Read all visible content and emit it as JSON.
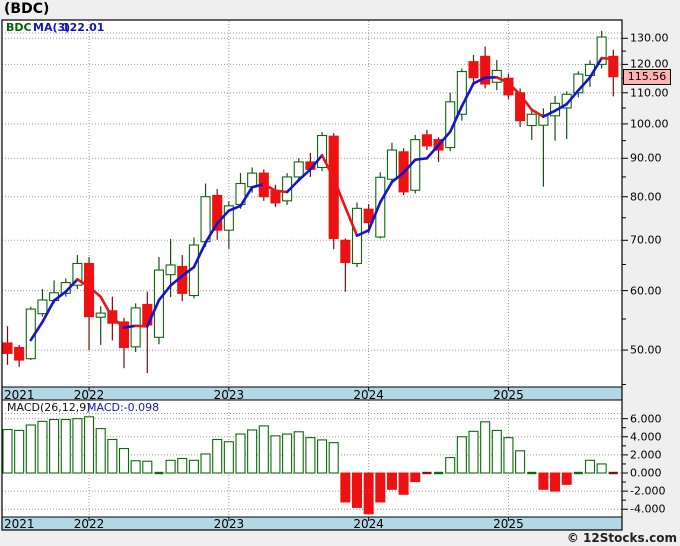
{
  "window": {
    "title": "(BDC)"
  },
  "price_pane": {
    "legend": {
      "symbol": "BDC",
      "ma_label": "MA(3)",
      "ma_value": "122.01"
    },
    "current_price_label": "115.56",
    "axis_labels": [
      {
        "label": "130.00",
        "value": 130
      },
      {
        "label": "120.00",
        "value": 120
      },
      {
        "label": "110.00",
        "value": 110
      },
      {
        "label": "100.00",
        "value": 100
      },
      {
        "label": "90.00",
        "value": 90
      },
      {
        "label": "80.00",
        "value": 80
      },
      {
        "label": "70.00",
        "value": 70
      },
      {
        "label": "60.00",
        "value": 60
      },
      {
        "label": "50.00",
        "value": 50
      }
    ],
    "minor_ticks": [
      125,
      115,
      105,
      95,
      85,
      75,
      65,
      55,
      45
    ]
  },
  "macd_pane": {
    "legend_label": "MACD(26,12,9)",
    "legend_value": "MACD:-0.098",
    "axis_labels": [
      {
        "label": "6.000",
        "value": 6
      },
      {
        "label": "4.000",
        "value": 4
      },
      {
        "label": "2.000",
        "value": 2
      },
      {
        "label": "0.000",
        "value": 0
      },
      {
        "label": "-2.000",
        "value": -2
      },
      {
        "label": "-4.000",
        "value": -4
      }
    ],
    "minor_ticks": [
      5,
      3,
      1,
      -1,
      -3
    ]
  },
  "x_axis": {
    "year_ticks": [
      {
        "label": "2021",
        "index": -7
      },
      {
        "label": "2022",
        "index": 7
      },
      {
        "label": "2023",
        "index": 19
      },
      {
        "label": "2024",
        "index": 31
      },
      {
        "label": "2025",
        "index": 43
      }
    ]
  },
  "watermark": "© 12Stocks.com",
  "colors": {
    "up_stroke": "#0b6b0b",
    "up_wick": "#1a4d1a",
    "up_fill": "#ffffff",
    "down_fill": "#ee1111",
    "down_wick": "#701010",
    "ma_up": "#1414cc",
    "ma_down": "#e81616",
    "band_fill": "#b2d8e6",
    "grid": "#9a9a9a",
    "price_box_bg": "#ffb3b3",
    "pane_bg": "#ffffff",
    "page_bg": "#efefef",
    "macd_pos_stroke": "#0b6b0b",
    "macd_neg_fill": "#ee1111",
    "macd_zero_pos": "#0b6b0b",
    "macd_zero_neg": "#8a0f0f"
  },
  "chart_data": {
    "type": "candlestick_with_macd",
    "title": "(BDC)",
    "ma_period": 3,
    "ma_last_value": 122.01,
    "macd_params": "26,12,9",
    "macd_last_value": -0.098,
    "current_price": 115.56,
    "price_axis": {
      "scale": "log",
      "tick_min": 50,
      "tick_max": 130,
      "tick_step": 10
    },
    "macd_axis": {
      "min": -4,
      "max": 6,
      "step": 2
    },
    "legend_position": "top-left",
    "grid": "dotted",
    "candles_ohlc": [
      [
        51.1,
        53.8,
        47.8,
        49.5
      ],
      [
        50.4,
        50.8,
        47.5,
        48.5
      ],
      [
        48.7,
        57.1,
        48.5,
        56.7
      ],
      [
        55.9,
        60.3,
        55.4,
        58.3
      ],
      [
        58.2,
        61.9,
        57.7,
        59.6
      ],
      [
        59.5,
        62.3,
        58.9,
        61.5
      ],
      [
        61.0,
        66.9,
        60.3,
        65.2
      ],
      [
        65.2,
        66.5,
        50.0,
        55.4
      ],
      [
        55.3,
        57.2,
        50.8,
        56.0
      ],
      [
        56.4,
        58.9,
        51.5,
        54.3
      ],
      [
        54.5,
        55.2,
        47.3,
        50.4
      ],
      [
        50.5,
        57.7,
        49.7,
        56.9
      ],
      [
        57.5,
        59.8,
        46.6,
        54.0
      ],
      [
        52.0,
        66.5,
        50.9,
        63.9
      ],
      [
        63.0,
        70.3,
        58.8,
        64.9
      ],
      [
        64.6,
        66.9,
        58.1,
        59.5
      ],
      [
        59.1,
        70.6,
        58.6,
        69.0
      ],
      [
        69.7,
        83.3,
        68.6,
        80.0
      ],
      [
        80.3,
        81.9,
        70.1,
        72.2
      ],
      [
        72.2,
        78.9,
        68.2,
        77.8
      ],
      [
        78.1,
        86.0,
        77.1,
        83.3
      ],
      [
        82.5,
        87.5,
        81.0,
        86.0
      ],
      [
        86.0,
        87.0,
        79.0,
        80.0
      ],
      [
        81.5,
        83.0,
        77.5,
        78.5
      ],
      [
        79.0,
        86.0,
        78.0,
        85.0
      ],
      [
        85.0,
        90.0,
        84.0,
        89.0
      ],
      [
        89.0,
        91.5,
        85.0,
        87.0
      ],
      [
        87.5,
        97.5,
        86.5,
        96.5
      ],
      [
        96.3,
        97.2,
        68.1,
        70.4
      ],
      [
        70.0,
        70.4,
        59.8,
        65.4
      ],
      [
        65.2,
        78.6,
        64.5,
        77.2
      ],
      [
        77.0,
        78.2,
        71.5,
        73.9
      ],
      [
        70.7,
        86.2,
        70.4,
        84.9
      ],
      [
        84.4,
        94.4,
        83.1,
        92.3
      ],
      [
        91.8,
        92.8,
        80.4,
        81.2
      ],
      [
        81.6,
        96.7,
        80.8,
        95.3
      ],
      [
        96.7,
        98.2,
        92.3,
        93.5
      ],
      [
        95.3,
        96.0,
        89.0,
        92.3
      ],
      [
        93.0,
        110.0,
        92.0,
        107.0
      ],
      [
        103.0,
        118.5,
        101.0,
        117.4
      ],
      [
        121.0,
        123.5,
        113.5,
        115.2
      ],
      [
        123.0,
        126.7,
        111.5,
        113.0
      ],
      [
        113.6,
        121.6,
        110.9,
        117.8
      ],
      [
        115.0,
        116.6,
        107.9,
        109.3
      ],
      [
        110.0,
        111.5,
        99.0,
        101.0
      ],
      [
        99.5,
        104.0,
        95.2,
        103.0
      ],
      [
        99.6,
        104.9,
        82.5,
        102.8
      ],
      [
        102.5,
        109.0,
        95.0,
        106.5
      ],
      [
        105.0,
        110.5,
        95.5,
        109.5
      ],
      [
        110.0,
        117.5,
        108.5,
        116.5
      ],
      [
        116.0,
        121.5,
        112.0,
        120.0
      ],
      [
        120.0,
        133.0,
        118.5,
        130.5
      ],
      [
        123.0,
        125.5,
        108.8,
        115.56
      ]
    ],
    "macd_histogram": [
      4.8,
      4.7,
      5.3,
      5.7,
      5.9,
      5.9,
      6.0,
      6.2,
      4.9,
      3.7,
      2.7,
      1.35,
      1.3,
      0.15,
      1.4,
      1.6,
      1.4,
      2.1,
      3.7,
      3.45,
      4.3,
      4.75,
      5.2,
      4.1,
      4.3,
      4.55,
      3.9,
      3.65,
      3.35,
      -3.2,
      -3.8,
      -4.5,
      -3.2,
      -1.8,
      -2.35,
      -0.95,
      -0.15,
      0.1,
      1.7,
      4.0,
      4.6,
      5.65,
      4.7,
      3.9,
      2.45,
      0.2,
      -1.8,
      -2.0,
      -1.25,
      0.15,
      1.4,
      1.0,
      -0.098
    ]
  }
}
